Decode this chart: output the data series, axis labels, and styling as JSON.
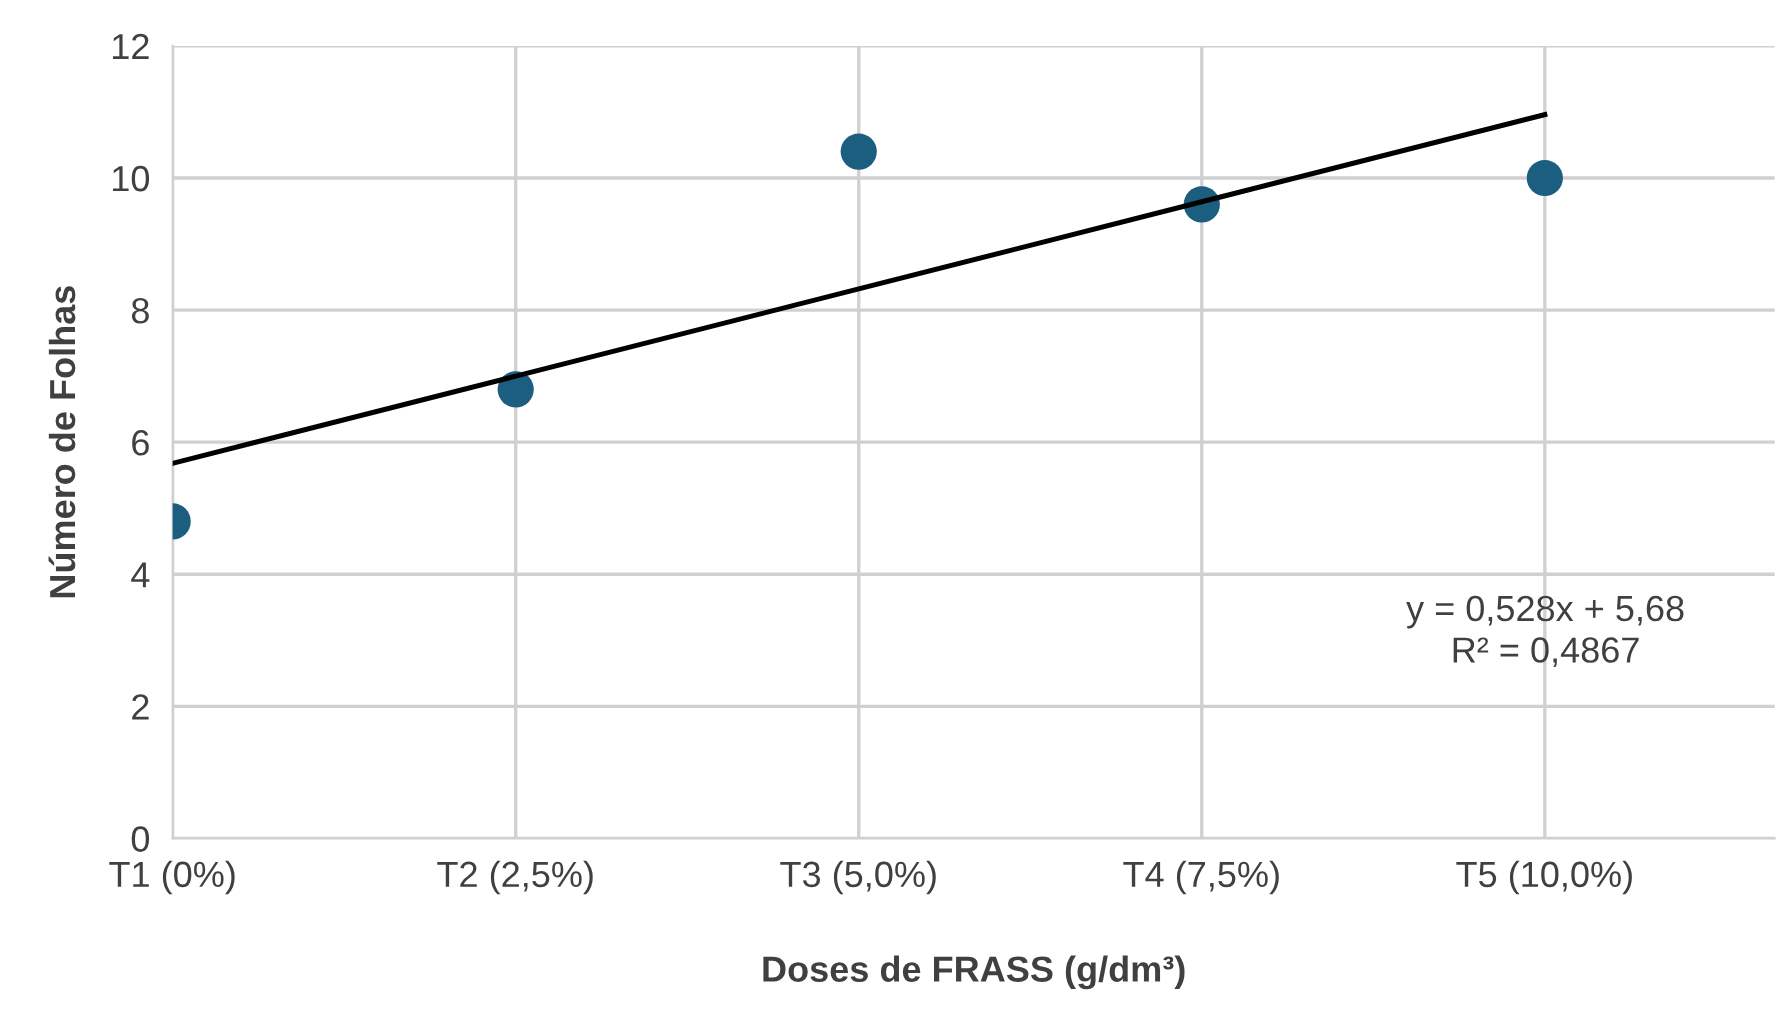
{
  "chart_data": {
    "type": "scatter",
    "xlabel": "Doses de FRASS (g/dm³)",
    "ylabel": "Número de Folhas",
    "categories": [
      "T1 (0%)",
      "T2 (2,5%)",
      "T3 (5,0%)",
      "T4 (7,5%)",
      "T5 (10,0%)"
    ],
    "series": [
      {
        "color": "#1b5e80",
        "values": [
          4.8,
          6.8,
          10.4,
          9.6,
          10.0
        ],
        "marker": "circle"
      },
      {
        "type": "line",
        "color": "#000000",
        "values": [
          5.68,
          7.0,
          8.32,
          9.64,
          10.96
        ],
        "marker": "none",
        "line_style": "solid"
      }
    ],
    "ylim": [
      0,
      12
    ],
    "yticks": [
      0,
      2,
      4,
      6,
      8,
      10,
      12
    ],
    "annotations": [
      "y = 0,528x + 5,68\nR² = 0,4867"
    ],
    "grid": true
  }
}
